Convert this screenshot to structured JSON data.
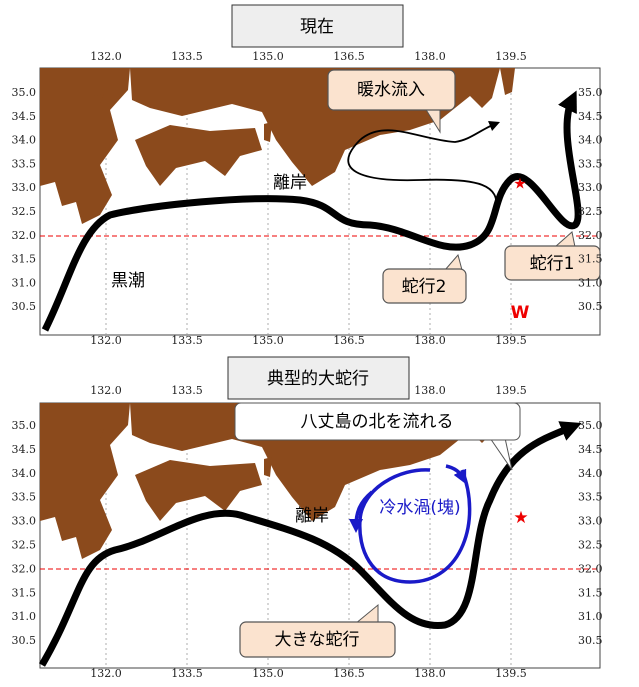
{
  "panels": [
    {
      "title": "現在",
      "xticks": [
        "132.0",
        "133.5",
        "135.0",
        "136.5",
        "138.0",
        "139.5"
      ],
      "yticks": [
        "35.0",
        "34.5",
        "34.0",
        "33.5",
        "33.0",
        "32.5",
        "32.0",
        "31.5",
        "31.0",
        "30.5"
      ],
      "labels": {
        "warm_inflow": "暖水流入",
        "offshore": "離岸",
        "kuroshio": "黒潮",
        "meander2": "蛇行2",
        "meander1": "蛇行1",
        "w": "W"
      }
    },
    {
      "title": "典型的大蛇行",
      "xticks": [
        "132.0",
        "133.5",
        "135.0",
        "136.5",
        "138.0",
        "139.5"
      ],
      "yticks": [
        "35.0",
        "34.5",
        "34.0",
        "33.5",
        "33.0",
        "32.5",
        "32.0",
        "31.5",
        "31.0",
        "30.5"
      ],
      "labels": {
        "north_of_hachijo": "八丈島の北を流れる",
        "offshore": "離岸",
        "cold_eddy": "冷水渦(塊)",
        "large_meander": "大きな蛇行"
      }
    }
  ]
}
